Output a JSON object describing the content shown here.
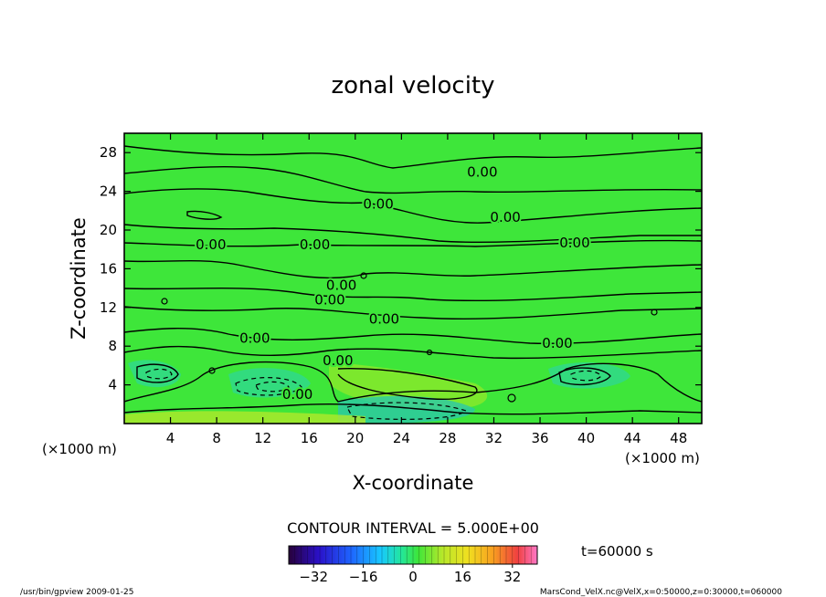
{
  "chart_data": {
    "type": "heatmap",
    "title": "zonal velocity",
    "xlabel": "X-coordinate",
    "ylabel": "Z-coordinate",
    "x_unit": "(×1000 m)",
    "y_unit": "(×1000 m)",
    "xlim": [
      0,
      50
    ],
    "ylim": [
      0,
      30
    ],
    "x_ticks": [
      4,
      8,
      12,
      16,
      20,
      24,
      28,
      32,
      36,
      40,
      44,
      48
    ],
    "y_ticks": [
      4,
      8,
      12,
      16,
      20,
      24,
      28
    ],
    "contour_interval_text": "CONTOUR INTERVAL = 5.000E+00",
    "contour_labels": [
      {
        "text": "0.00",
        "x": 31.0,
        "z": 26.0
      },
      {
        "text": "0.00",
        "x": 22.0,
        "z": 22.7
      },
      {
        "text": "0.00",
        "x": 33.0,
        "z": 21.3
      },
      {
        "text": "0.00",
        "x": 7.5,
        "z": 18.5
      },
      {
        "text": "0.00",
        "x": 16.5,
        "z": 18.5
      },
      {
        "text": "0.00",
        "x": 39.0,
        "z": 18.7
      },
      {
        "text": "0.00",
        "x": 18.8,
        "z": 14.3
      },
      {
        "text": "0.00",
        "x": 17.8,
        "z": 12.8
      },
      {
        "text": "0.00",
        "x": 22.5,
        "z": 10.8
      },
      {
        "text": "0.00",
        "x": 11.3,
        "z": 8.8
      },
      {
        "text": "0.00",
        "x": 37.5,
        "z": 8.3
      },
      {
        "text": "0.00",
        "x": 18.5,
        "z": 6.5
      },
      {
        "text": "0.00",
        "x": 15.0,
        "z": 3.0
      }
    ],
    "colorbar": {
      "min": -40,
      "max": 40,
      "ticks": [
        "−32",
        "−16",
        "0",
        "16",
        "32"
      ],
      "tick_values": [
        -32,
        -16,
        0,
        16,
        32
      ]
    },
    "time_label": "t=60000 s",
    "colors": {
      "field_background": "#3ee63a",
      "faint_positive": "#7ae82a",
      "faint_negative": "#3be08a"
    }
  },
  "footer": {
    "left": "/usr/bin/gpview  2009-01-25",
    "right": "MarsCond_VelX.nc@VelX,x=0:50000,z=0:30000,t=060000"
  }
}
